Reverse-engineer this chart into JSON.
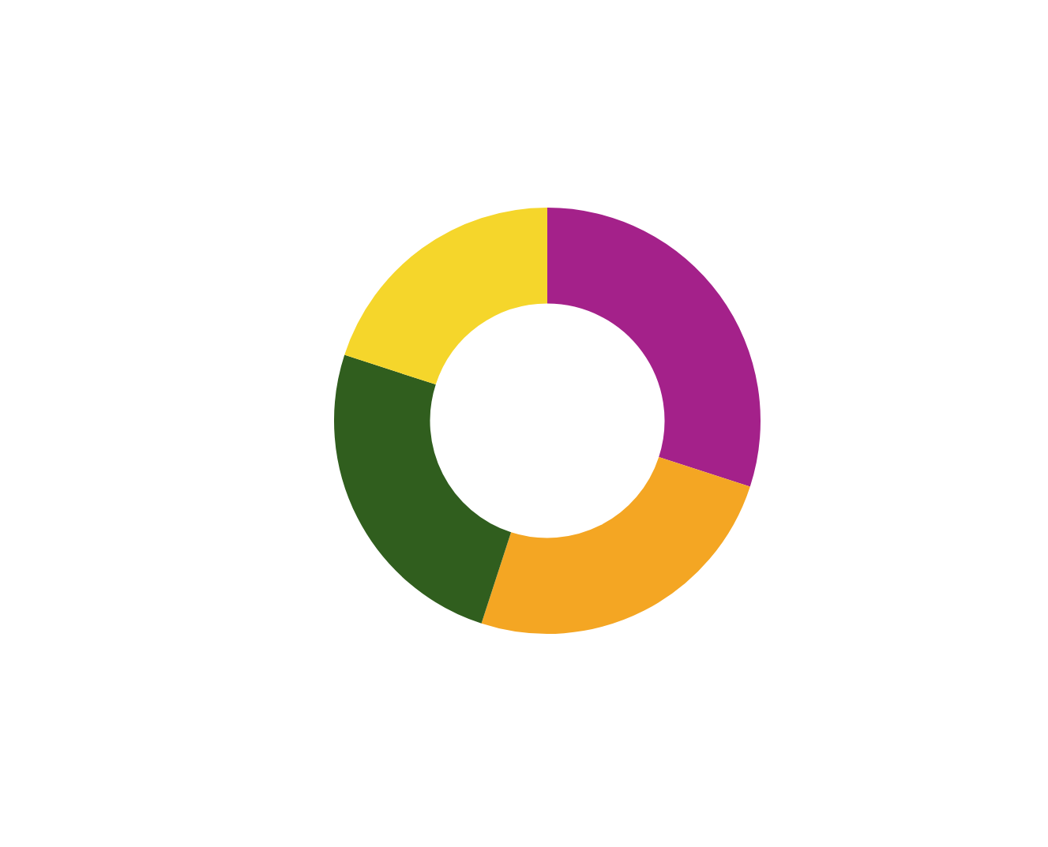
{
  "chart_data": {
    "type": "donut",
    "categories": [
      null,
      null,
      null,
      null
    ],
    "values": [
      30,
      25,
      25,
      20
    ],
    "colors": [
      "#a4218a",
      "#f4a623",
      "#305e1e",
      "#f5d62b"
    ],
    "legend": false
  }
}
